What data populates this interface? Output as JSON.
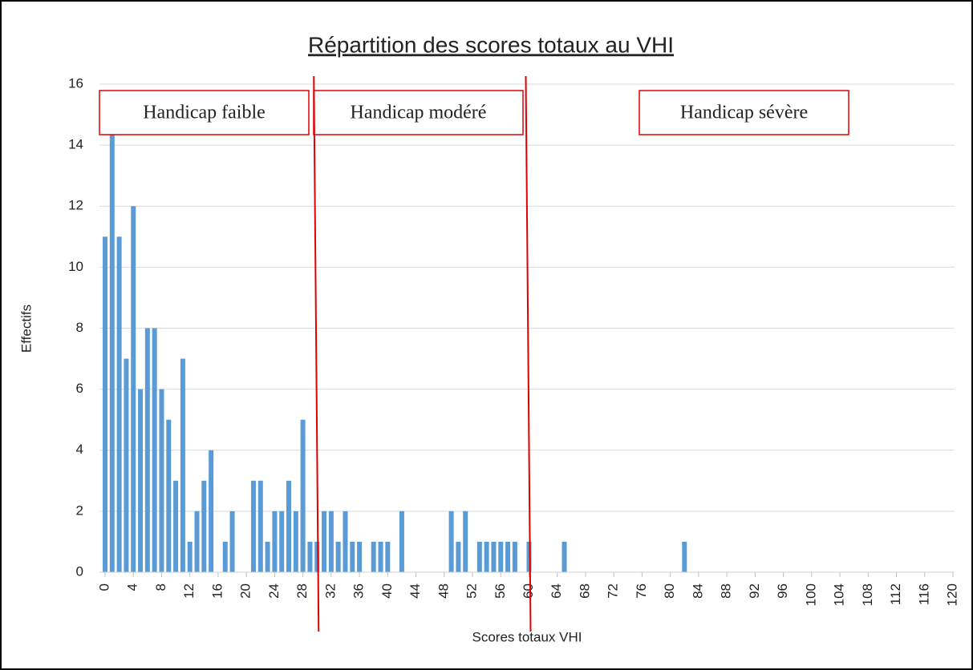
{
  "chart_data": {
    "type": "bar",
    "title": "Répartition des scores totaux au VHI",
    "xlabel": "Scores totaux VHI",
    "ylabel": "Effectifs",
    "x": [
      0,
      1,
      2,
      3,
      4,
      5,
      6,
      7,
      8,
      9,
      10,
      11,
      12,
      13,
      14,
      15,
      17,
      18,
      21,
      22,
      23,
      24,
      25,
      26,
      27,
      28,
      29,
      30,
      31,
      32,
      33,
      34,
      35,
      36,
      38,
      39,
      40,
      42,
      49,
      50,
      51,
      53,
      54,
      55,
      56,
      57,
      58,
      60,
      65,
      82
    ],
    "values": [
      11,
      15,
      11,
      7,
      12,
      6,
      8,
      8,
      6,
      5,
      3,
      7,
      1,
      2,
      3,
      4,
      1,
      2,
      3,
      3,
      1,
      2,
      2,
      3,
      2,
      5,
      1,
      1,
      2,
      2,
      1,
      2,
      1,
      1,
      1,
      1,
      1,
      2,
      2,
      1,
      2,
      1,
      1,
      1,
      1,
      1,
      1,
      1,
      1,
      1
    ],
    "color": "#5b9bd5",
    "xlim": [
      0,
      120
    ],
    "xticks": [
      0,
      4,
      8,
      12,
      16,
      20,
      24,
      28,
      32,
      36,
      40,
      44,
      48,
      52,
      56,
      60,
      64,
      68,
      72,
      76,
      80,
      84,
      88,
      92,
      96,
      100,
      104,
      108,
      112,
      116,
      120
    ],
    "ylim": [
      0,
      16
    ],
    "yticks": [
      0,
      2,
      4,
      6,
      8,
      10,
      12,
      14,
      16
    ],
    "grid": true,
    "thresholds": [
      30,
      60
    ],
    "annotations": [
      "Handicap faible",
      "Handicap modéré",
      "Handicap sévère"
    ]
  }
}
